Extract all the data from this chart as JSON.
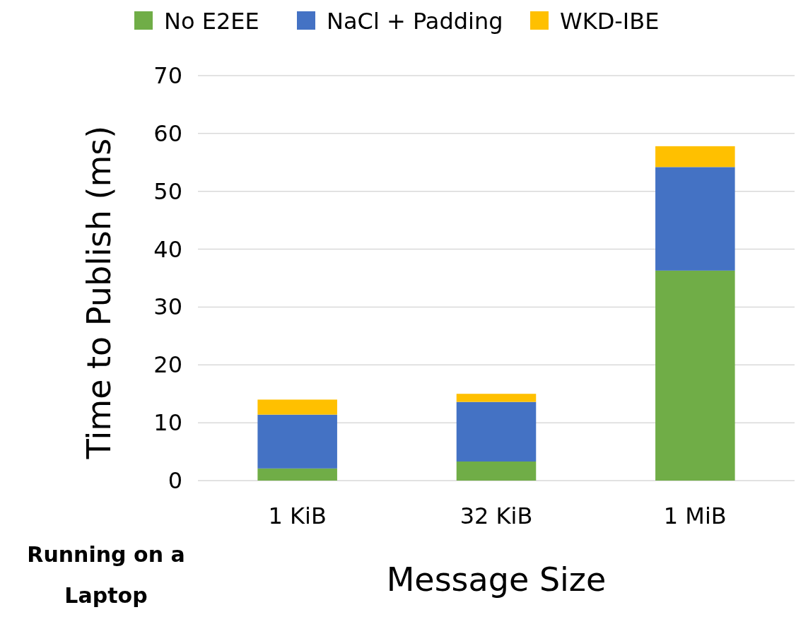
{
  "chart_data": {
    "type": "bar",
    "stacked": true,
    "xlabel": "Message Size",
    "ylabel": "Time to Publish (ms)",
    "categories": [
      "1 KiB",
      "32 KiB",
      "1 MiB"
    ],
    "series": [
      {
        "name": "No E2EE",
        "color": "#70ad47",
        "values": [
          2.1,
          3.3,
          36.3
        ]
      },
      {
        "name": "NaCl + Padding",
        "color": "#4472c4",
        "values": [
          9.3,
          10.3,
          17.9
        ]
      },
      {
        "name": "WKD-IBE",
        "color": "#ffc000",
        "values": [
          2.6,
          1.4,
          3.6
        ]
      }
    ],
    "ylim": [
      0,
      70
    ],
    "yticks": [
      0,
      10,
      20,
      30,
      40,
      50,
      60,
      70
    ],
    "grid": "y",
    "legend": "top",
    "annotations": [
      "Running on a Laptop"
    ]
  }
}
